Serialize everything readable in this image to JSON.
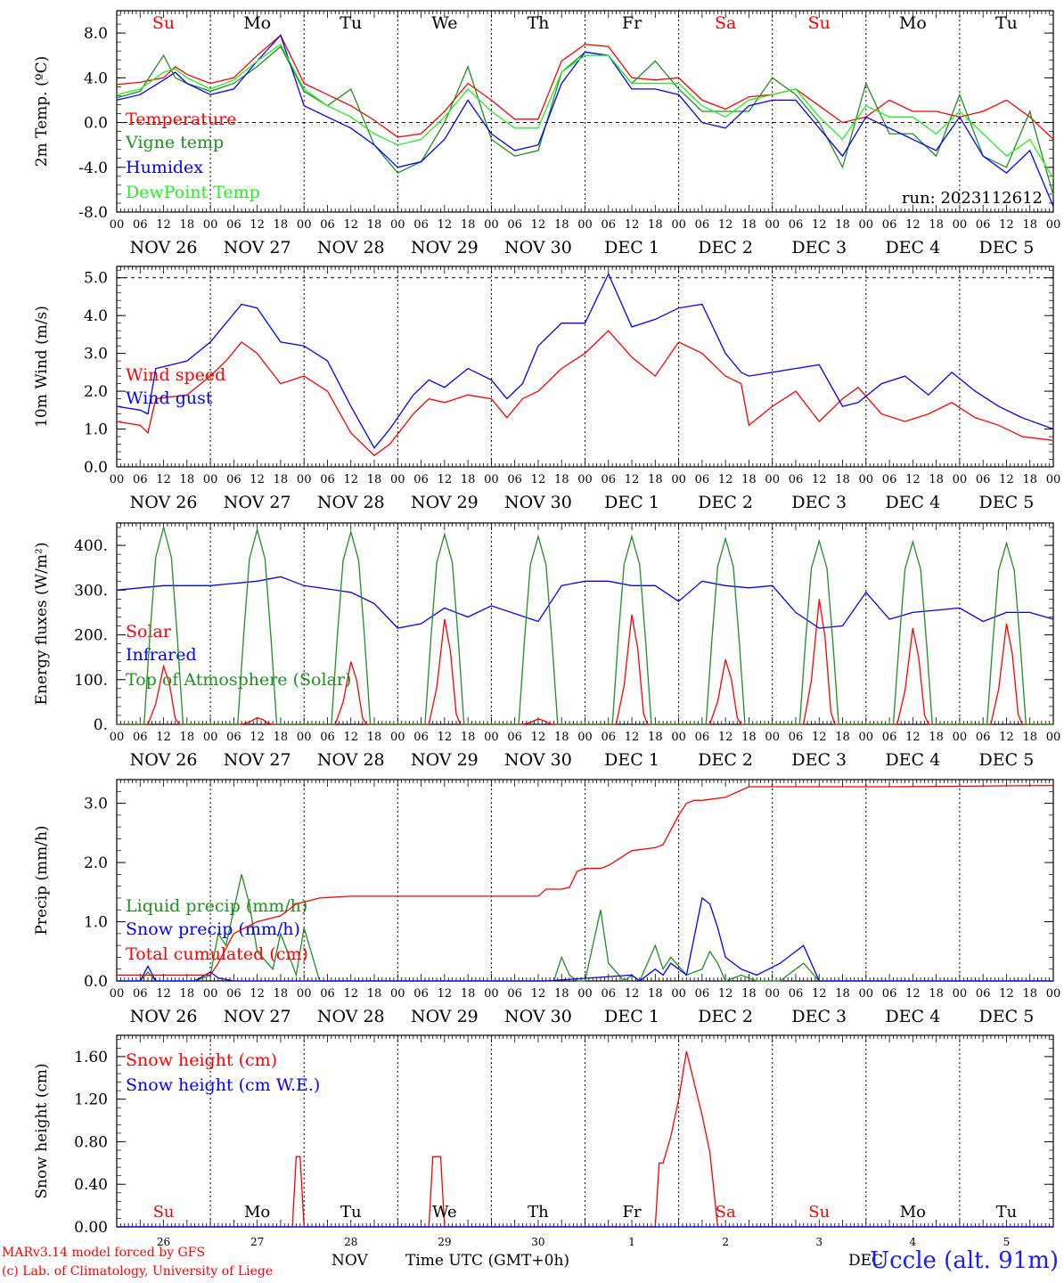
{
  "colors": {
    "red": "#ff0000",
    "green": "#1f8f1f",
    "blue": "#0000ff",
    "lightgreen": "#22ee22",
    "black": "#000000"
  },
  "days": [
    "NOV 26",
    "NOV 27",
    "NOV 28",
    "NOV 29",
    "NOV 30",
    "DEC  1",
    "DEC  2",
    "DEC  3",
    "DEC  4",
    "DEC  5"
  ],
  "weekdays": [
    {
      "label": "Su",
      "color": "red"
    },
    {
      "label": "Mo",
      "color": "black"
    },
    {
      "label": "Tu",
      "color": "black"
    },
    {
      "label": "We",
      "color": "black"
    },
    {
      "label": "Th",
      "color": "black"
    },
    {
      "label": "Fr",
      "color": "black"
    },
    {
      "label": "Sa",
      "color": "red"
    },
    {
      "label": "Su",
      "color": "red"
    },
    {
      "label": "Mo",
      "color": "black"
    },
    {
      "label": "Tu",
      "color": "black"
    }
  ],
  "hour_ticks": [
    "00",
    "06",
    "12",
    "18"
  ],
  "bottom_day_numbers": [
    "26",
    "27",
    "28",
    "29",
    "30",
    "1",
    "2",
    "3",
    "4",
    "5"
  ],
  "bottom_month_labels": [
    "NOV",
    "DEC"
  ],
  "bottom_axis_title": "Time UTC (GMT+0h)",
  "footer": {
    "model": "MARv3.14 model forced by GFS",
    "lab": "(c) Lab. of Climatology, University of Liege",
    "station": "Uccle (alt. 91m)"
  },
  "chart_data": [
    {
      "type": "line",
      "ylabel": "2m Temp. (ºC)",
      "ylim": [
        -8,
        10
      ],
      "yticks": [
        "-8.0",
        "-4.0",
        "0.0",
        "4.0",
        "8.0"
      ],
      "ytick_values": [
        -8,
        -4,
        0,
        4,
        8
      ],
      "ref_line": 0,
      "annotation": "run: 2023112612",
      "x_unit": "hours since NOV 26 00 UTC",
      "series": [
        {
          "name": "Temperature",
          "color": "red",
          "x": [
            0,
            6,
            12,
            15,
            18,
            24,
            30,
            36,
            42,
            48,
            54,
            60,
            66,
            72,
            78,
            84,
            90,
            96,
            102,
            108,
            114,
            120,
            126,
            132,
            138,
            144,
            150,
            156,
            162,
            168,
            174,
            180,
            186,
            192,
            198,
            204,
            210,
            216,
            222,
            228,
            234,
            240
          ],
          "y": [
            3.4,
            3.6,
            4.0,
            5.0,
            4.3,
            3.5,
            4.0,
            6.0,
            7.8,
            3.5,
            2.5,
            1.5,
            0.2,
            -1.3,
            -1.0,
            1.0,
            3.5,
            2.0,
            0.3,
            0.3,
            5.5,
            7.0,
            6.8,
            4.0,
            3.8,
            4.0,
            2.0,
            1.2,
            2.3,
            2.5,
            3.0,
            1.5,
            0.0,
            0.5,
            2.0,
            1.0,
            1.0,
            0.5,
            1.0,
            2.0,
            0.5,
            -1.5
          ]
        },
        {
          "name": "Vigne temp",
          "color": "green",
          "x": [
            0,
            6,
            12,
            15,
            18,
            24,
            30,
            36,
            42,
            48,
            54,
            60,
            66,
            72,
            78,
            84,
            90,
            96,
            102,
            108,
            114,
            120,
            126,
            132,
            138,
            144,
            150,
            156,
            162,
            168,
            174,
            180,
            186,
            192,
            198,
            204,
            210,
            216,
            222,
            228,
            234,
            240
          ],
          "y": [
            2.2,
            2.8,
            6.0,
            4.0,
            3.5,
            2.8,
            3.5,
            5.0,
            6.8,
            2.8,
            1.5,
            3.0,
            -2.0,
            -4.5,
            -3.5,
            0.0,
            5.0,
            -1.5,
            -3.0,
            -2.5,
            4.5,
            6.3,
            6.0,
            3.5,
            5.5,
            3.0,
            1.0,
            1.0,
            1.0,
            4.0,
            2.5,
            0.0,
            -4.0,
            3.5,
            -1.0,
            -1.0,
            -3.0,
            2.5,
            -3.0,
            -4.0,
            1.0,
            -6.5
          ]
        },
        {
          "name": "Humidex",
          "color": "blue",
          "x": [
            0,
            6,
            12,
            15,
            18,
            24,
            30,
            36,
            42,
            48,
            54,
            60,
            66,
            72,
            78,
            84,
            90,
            96,
            102,
            108,
            114,
            120,
            126,
            132,
            138,
            144,
            150,
            156,
            162,
            168,
            174,
            180,
            186,
            192,
            198,
            204,
            210,
            216,
            222,
            228,
            234,
            240
          ],
          "y": [
            2.0,
            2.5,
            3.8,
            4.5,
            3.5,
            2.5,
            3.0,
            5.5,
            7.8,
            1.5,
            0.5,
            -0.5,
            -2.0,
            -4.0,
            -3.5,
            -1.5,
            2.0,
            -1.0,
            -2.5,
            -2.0,
            3.5,
            6.3,
            6.0,
            3.0,
            3.0,
            2.5,
            0.0,
            -0.5,
            1.5,
            2.0,
            2.0,
            -0.5,
            -3.0,
            0.5,
            -0.5,
            -1.5,
            -2.5,
            0.5,
            -3.0,
            -4.5,
            -2.5,
            -7.5
          ]
        },
        {
          "name": "DewPoint Temp",
          "color": "lightgreen",
          "x": [
            0,
            6,
            12,
            15,
            18,
            24,
            30,
            36,
            42,
            48,
            54,
            60,
            66,
            72,
            78,
            84,
            90,
            96,
            102,
            108,
            114,
            120,
            126,
            132,
            138,
            144,
            150,
            156,
            162,
            168,
            174,
            180,
            186,
            192,
            198,
            204,
            210,
            216,
            222,
            228,
            234,
            240
          ],
          "y": [
            2.5,
            3.0,
            4.5,
            4.8,
            4.0,
            3.0,
            3.8,
            5.5,
            7.0,
            3.0,
            1.5,
            0.5,
            -1.0,
            -2.0,
            -1.5,
            0.5,
            3.0,
            1.0,
            -0.5,
            -0.5,
            4.5,
            6.0,
            6.0,
            3.5,
            3.5,
            3.5,
            1.5,
            0.5,
            2.0,
            2.5,
            3.0,
            0.5,
            -1.5,
            1.5,
            0.5,
            0.5,
            -1.0,
            1.0,
            -1.0,
            -3.0,
            -1.5,
            -5.0
          ]
        }
      ]
    },
    {
      "type": "line",
      "ylabel": "10m Wind (m/s)",
      "ylim": [
        0,
        5.3
      ],
      "yticks": [
        "0.0",
        "1.0",
        "2.0",
        "3.0",
        "4.0",
        "5.0"
      ],
      "ytick_values": [
        0,
        1,
        2,
        3,
        4,
        5
      ],
      "ref_line": 5,
      "x_unit": "hours since NOV 26 00 UTC",
      "series": [
        {
          "name": "Wind speed",
          "color": "red",
          "x": [
            0,
            6,
            8,
            10,
            18,
            24,
            28,
            32,
            36,
            42,
            48,
            54,
            60,
            66,
            70,
            76,
            80,
            84,
            90,
            96,
            100,
            104,
            108,
            114,
            120,
            126,
            132,
            138,
            144,
            150,
            156,
            160,
            162,
            168,
            174,
            180,
            186,
            190,
            196,
            202,
            208,
            214,
            220,
            226,
            232,
            240
          ],
          "y": [
            1.2,
            1.1,
            0.9,
            1.8,
            1.9,
            2.4,
            2.8,
            3.3,
            3.0,
            2.2,
            2.4,
            2.0,
            0.9,
            0.3,
            0.6,
            1.4,
            1.8,
            1.7,
            1.9,
            1.8,
            1.3,
            1.8,
            2.0,
            2.6,
            3.0,
            3.6,
            2.9,
            2.4,
            3.3,
            3.0,
            2.4,
            2.2,
            1.1,
            1.6,
            2.0,
            1.2,
            1.8,
            2.1,
            1.4,
            1.2,
            1.4,
            1.7,
            1.3,
            1.1,
            0.8,
            0.7
          ]
        },
        {
          "name": "Wind gust",
          "color": "blue",
          "x": [
            0,
            6,
            8,
            10,
            18,
            24,
            28,
            32,
            36,
            42,
            48,
            54,
            60,
            66,
            70,
            76,
            80,
            84,
            90,
            96,
            100,
            104,
            108,
            114,
            120,
            126,
            132,
            138,
            144,
            150,
            156,
            160,
            162,
            168,
            174,
            180,
            186,
            190,
            196,
            202,
            208,
            214,
            220,
            226,
            232,
            240
          ],
          "y": [
            1.6,
            1.5,
            1.4,
            2.6,
            2.8,
            3.3,
            3.8,
            4.3,
            4.2,
            3.3,
            3.2,
            2.8,
            1.6,
            0.5,
            1.0,
            1.9,
            2.3,
            2.1,
            2.6,
            2.3,
            1.8,
            2.2,
            3.2,
            3.8,
            3.8,
            5.1,
            3.7,
            3.9,
            4.2,
            4.3,
            3.0,
            2.5,
            2.4,
            2.5,
            2.6,
            2.7,
            1.6,
            1.7,
            2.2,
            2.4,
            1.9,
            2.5,
            2.0,
            1.6,
            1.3,
            1.0
          ]
        }
      ]
    },
    {
      "type": "line",
      "ylabel": "Energy fluxes (W/m²)",
      "ylim": [
        0,
        450
      ],
      "yticks": [
        "0.",
        "100.",
        "200.",
        "300.",
        "400."
      ],
      "ytick_values": [
        0,
        100,
        200,
        300,
        400
      ],
      "x_unit": "hours since NOV 26 00 UTC",
      "series": [
        {
          "name": "Solar",
          "color": "red",
          "peaks": [
            130,
            15,
            140,
            235,
            12,
            245,
            145,
            280,
            215,
            225
          ]
        },
        {
          "name": "Infrared",
          "color": "blue",
          "x": [
            0,
            12,
            24,
            36,
            42,
            48,
            60,
            66,
            72,
            78,
            84,
            90,
            96,
            108,
            114,
            120,
            126,
            132,
            138,
            144,
            150,
            156,
            162,
            168,
            174,
            180,
            186,
            192,
            198,
            204,
            210,
            216,
            222,
            228,
            234,
            240
          ],
          "y": [
            300,
            310,
            310,
            320,
            330,
            310,
            295,
            270,
            215,
            225,
            260,
            240,
            265,
            230,
            310,
            320,
            320,
            310,
            310,
            275,
            320,
            310,
            305,
            310,
            250,
            215,
            220,
            295,
            235,
            250,
            255,
            260,
            230,
            250,
            250,
            235
          ]
        },
        {
          "name": "Top of Atmosphere (Solar)",
          "color": "green",
          "peaks": [
            440,
            435,
            430,
            425,
            420,
            420,
            415,
            410,
            408,
            405
          ]
        }
      ]
    },
    {
      "type": "line",
      "ylabel": "Precip (mm/h)",
      "ylim": [
        0,
        3.4
      ],
      "yticks": [
        "0.0",
        "1.0",
        "2.0",
        "3.0"
      ],
      "ytick_values": [
        0,
        1,
        2,
        3
      ],
      "x_unit": "hours since NOV 26 00 UTC",
      "series": [
        {
          "name": "Liquid precip (mm/h)",
          "color": "green",
          "x": [
            0,
            6,
            8,
            10,
            20,
            24,
            26,
            28,
            32,
            34,
            36,
            40,
            42,
            46,
            48,
            52,
            110,
            112,
            114,
            116,
            118,
            120,
            124,
            126,
            130,
            132,
            134,
            138,
            140,
            142,
            146,
            150,
            152,
            154,
            156,
            160,
            164,
            170,
            176,
            180,
            240
          ],
          "y": [
            0,
            0,
            0.15,
            0,
            0,
            0.1,
            0.8,
            0.6,
            1.8,
            1.3,
            0.5,
            0.2,
            0.8,
            0.1,
            0.9,
            0,
            0,
            0,
            0.4,
            0.1,
            0,
            0,
            1.2,
            0.3,
            0,
            0.1,
            0,
            0.6,
            0.2,
            0.4,
            0.1,
            0.2,
            0.5,
            0.3,
            0,
            0.1,
            0,
            0,
            0.3,
            0,
            0
          ]
        },
        {
          "name": "Snow precip (mm/h)",
          "color": "blue",
          "x": [
            0,
            6,
            8,
            10,
            20,
            24,
            26,
            30,
            34,
            36,
            40,
            42,
            46,
            48,
            52,
            110,
            132,
            134,
            138,
            140,
            142,
            146,
            150,
            152,
            154,
            156,
            160,
            164,
            170,
            176,
            180,
            240
          ],
          "y": [
            0,
            0,
            0.25,
            0,
            0,
            0.15,
            0.05,
            0,
            0,
            0,
            0,
            0,
            0,
            0,
            0,
            0,
            0.1,
            0,
            0.2,
            0.1,
            0.3,
            0.1,
            1.4,
            1.3,
            0.9,
            0.4,
            0.2,
            0.1,
            0.3,
            0.6,
            0,
            0
          ]
        },
        {
          "name": "Total cumulated (cm)",
          "color": "red",
          "x": [
            0,
            24,
            26,
            30,
            36,
            42,
            46,
            52,
            60,
            96,
            108,
            110,
            112,
            114,
            116,
            118,
            120,
            122,
            124,
            126,
            132,
            138,
            140,
            144,
            146,
            148,
            150,
            156,
            162,
            164,
            166,
            168,
            172,
            180,
            200,
            240
          ],
          "y": [
            0.1,
            0.1,
            0.3,
            0.8,
            1.0,
            1.1,
            1.3,
            1.4,
            1.43,
            1.43,
            1.43,
            1.55,
            1.55,
            1.55,
            1.58,
            1.85,
            1.9,
            1.9,
            1.9,
            1.95,
            2.2,
            2.25,
            2.3,
            2.8,
            3.0,
            3.05,
            3.05,
            3.1,
            3.28,
            3.28,
            3.28,
            3.28,
            3.28,
            3.28,
            3.28,
            3.3
          ]
        }
      ]
    },
    {
      "type": "line",
      "ylabel": "Snow height (cm)",
      "ylim": [
        0,
        1.8
      ],
      "yticks": [
        "0.00",
        "0.40",
        "0.80",
        "1.20",
        "1.60"
      ],
      "ytick_values": [
        0,
        0.4,
        0.8,
        1.2,
        1.6
      ],
      "x_unit": "hours since NOV 26 00 UTC",
      "series": [
        {
          "name": "Snow height (cm)",
          "color": "red",
          "x": [
            0,
            45,
            46,
            47,
            48,
            80,
            81,
            82,
            83,
            84,
            138,
            139,
            140,
            142,
            144,
            146,
            148,
            150,
            152,
            154,
            240
          ],
          "y": [
            0,
            0,
            0.66,
            0.66,
            0,
            0,
            0.66,
            0.66,
            0.66,
            0,
            0,
            0.6,
            0.6,
            0.85,
            1.2,
            1.65,
            1.35,
            1.05,
            0.7,
            0,
            0
          ]
        },
        {
          "name": "Snow height (cm W.E.)",
          "color": "blue",
          "x": [
            0,
            240
          ],
          "y": [
            0,
            0
          ]
        }
      ]
    }
  ]
}
